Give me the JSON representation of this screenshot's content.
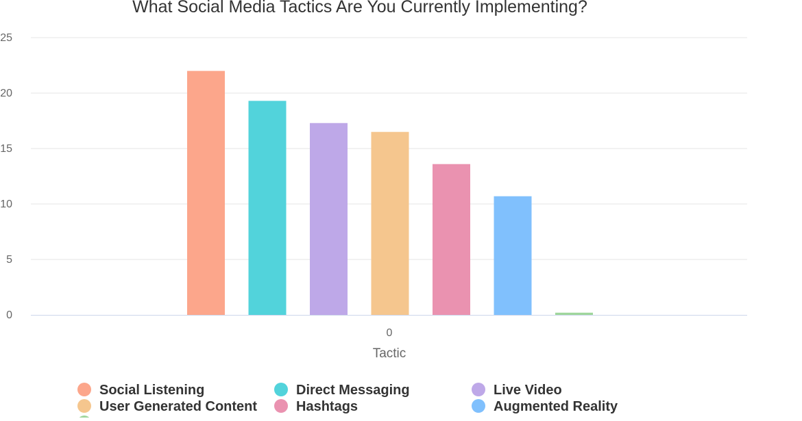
{
  "chart_data": {
    "type": "bar",
    "title": "What Social Media Tactics Are You Currently Implementing?",
    "xlabel": "Tactic",
    "ylabel": "",
    "categories": [
      "0"
    ],
    "ylim": [
      0,
      25
    ],
    "yticks": [
      0,
      5,
      10,
      15,
      20,
      25
    ],
    "grid": true,
    "legend_position": "bottom",
    "series": [
      {
        "name": "Social Listening",
        "values": [
          22
        ],
        "color": "#fca68b"
      },
      {
        "name": "Direct Messaging",
        "values": [
          19.3
        ],
        "color": "#52d3db"
      },
      {
        "name": "Live Video",
        "values": [
          17.3
        ],
        "color": "#bea8e8"
      },
      {
        "name": "User Generated Content",
        "values": [
          16.5
        ],
        "color": "#f5c68e"
      },
      {
        "name": "Hashtags",
        "values": [
          13.6
        ],
        "color": "#ea92b0"
      },
      {
        "name": "Augmented Reality",
        "values": [
          10.7
        ],
        "color": "#80c0fd"
      },
      {
        "name": "",
        "values": [
          0.2
        ],
        "color": "#9fd69c"
      }
    ]
  }
}
